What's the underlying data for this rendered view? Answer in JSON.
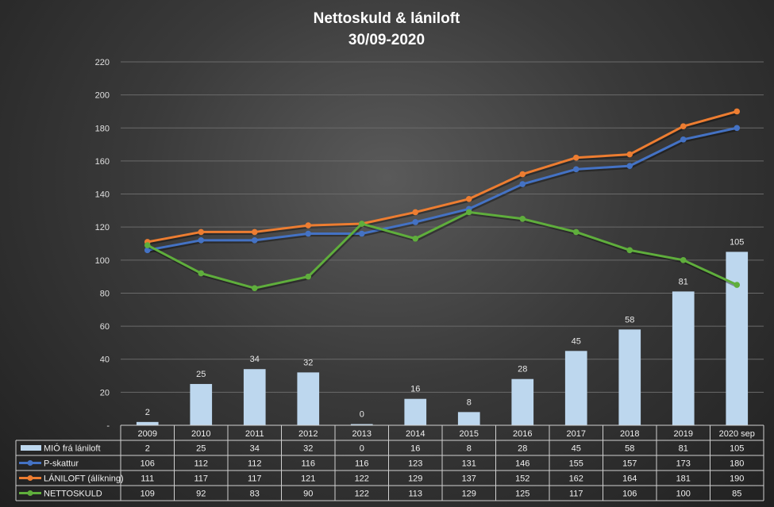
{
  "chart_data": {
    "type": "bar+line",
    "title_line1": "Nettoskuld  & lániloft",
    "title_line2": "30/09-2020",
    "categories": [
      "2009",
      "2010",
      "2011",
      "2012",
      "2013",
      "2014",
      "2015",
      "2016",
      "2017",
      "2018",
      "2019",
      "2020 sep"
    ],
    "ylim": [
      0,
      220
    ],
    "yticks": [
      "-",
      "20",
      "40",
      "60",
      "80",
      "100",
      "120",
      "140",
      "160",
      "180",
      "200",
      "220"
    ],
    "grid": true,
    "legend": "data-table",
    "series": [
      {
        "name": "MIÓ frá lániloft",
        "kind": "bar",
        "color": "#bdd7ee",
        "values": [
          2,
          25,
          34,
          32,
          0,
          16,
          8,
          28,
          45,
          58,
          81,
          105
        ],
        "labels": [
          "2",
          "25",
          "34",
          "32",
          "0",
          "16",
          "8",
          "28",
          "45",
          "58",
          "81",
          "105"
        ]
      },
      {
        "name": "P-skattur",
        "kind": "line",
        "color": "#4472c4",
        "values": [
          106,
          112,
          112,
          116,
          116,
          123,
          131,
          146,
          155,
          157,
          173,
          180
        ],
        "labels": [
          "106",
          "112",
          "112",
          "116",
          "116",
          "123",
          "131",
          "146",
          "155",
          "157",
          "173",
          "180"
        ]
      },
      {
        "name": "LÁNILOFT (álíkning)",
        "kind": "line",
        "color": "#ed7d31",
        "values": [
          111,
          117,
          117,
          121,
          122,
          129,
          137,
          152,
          162,
          164,
          181,
          190
        ],
        "labels": [
          "111",
          "117",
          "117",
          "121",
          "122",
          "129",
          "137",
          "152",
          "162",
          "164",
          "181",
          "190"
        ]
      },
      {
        "name": "NETTOSKULD",
        "kind": "line",
        "color": "#5fae3c",
        "values": [
          109,
          92,
          83,
          90,
          122,
          113,
          129,
          125,
          117,
          106,
          100,
          85
        ],
        "labels": [
          "109",
          "92",
          "83",
          "90",
          "122",
          "113",
          "129",
          "125",
          "117",
          "106",
          "100",
          "85"
        ]
      }
    ]
  }
}
